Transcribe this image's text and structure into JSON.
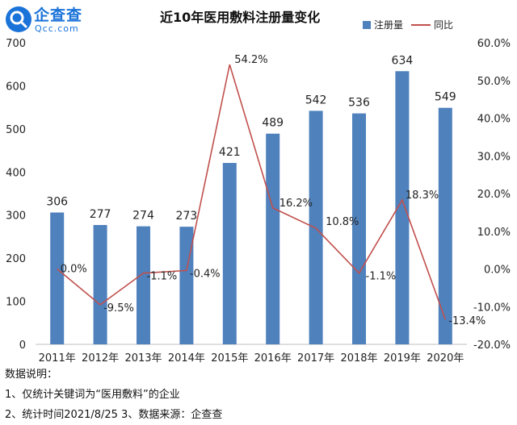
{
  "brand": {
    "name": "企查查",
    "sub": "Qcc.com"
  },
  "chart_data": {
    "type": "bar",
    "title": "近10年医用敷料注册量变化",
    "categories": [
      "2011年",
      "2012年",
      "2013年",
      "2014年",
      "2015年",
      "2016年",
      "2017年",
      "2018年",
      "2019年",
      "2020年"
    ],
    "series": [
      {
        "name": "注册量",
        "type": "bar",
        "axis": "left",
        "values": [
          306,
          277,
          274,
          273,
          421,
          489,
          542,
          536,
          634,
          549
        ],
        "labels": [
          "306",
          "277",
          "274",
          "273",
          "421",
          "489",
          "542",
          "536",
          "634",
          "549"
        ],
        "color": "#4f81bd"
      },
      {
        "name": "同比",
        "type": "line",
        "axis": "right",
        "values": [
          0.0,
          -9.5,
          -1.1,
          -0.4,
          54.2,
          16.2,
          10.8,
          -1.1,
          18.3,
          -13.4
        ],
        "labels": [
          "0.0%",
          "-9.5%",
          "-1.1%",
          "-0.4%",
          "54.2%",
          "16.2%",
          "10.8%",
          "-1.1%",
          "18.3%",
          "-13.4%"
        ],
        "color": "#c0504d"
      }
    ],
    "ylim_left": [
      0,
      700
    ],
    "yticks_left": [
      "0",
      "100",
      "200",
      "300",
      "400",
      "500",
      "600",
      "700"
    ],
    "ylim_right": [
      -20,
      60
    ],
    "yticks_right": [
      "-20.0%",
      "-10.0%",
      "0.0%",
      "10.0%",
      "20.0%",
      "30.0%",
      "40.0%",
      "50.0%",
      "60.0%"
    ],
    "grid": false,
    "legend": "top-right"
  },
  "notes": {
    "heading": "数据说明：",
    "line1": "1、仅统计关键词为“医用敷料”的企业",
    "line2": "2、统计时间2021/8/25   3、数据来源：企查查"
  }
}
